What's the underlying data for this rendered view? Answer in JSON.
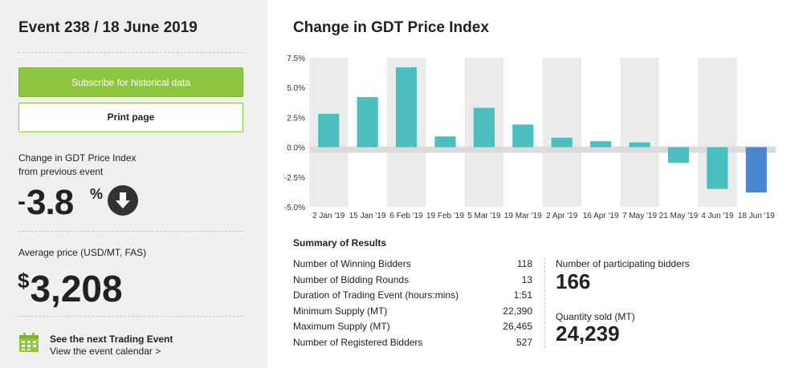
{
  "event": {
    "title": "Event 238 / 18 June 2019"
  },
  "buttons": {
    "subscribe": "Subscribe for historical data",
    "print": "Print page"
  },
  "change": {
    "label_line1": "Change in GDT Price Index",
    "label_line2": "from previous event",
    "sign": "-",
    "value": "3.8",
    "unit": "%",
    "direction_icon": "arrow-down-circle-icon"
  },
  "average": {
    "label": "Average price (USD/MT, FAS)",
    "currency": "$",
    "value": "3,208"
  },
  "next_event": {
    "title": "See the next Trading Event",
    "link": "View the event calendar >",
    "icon": "calendar-icon"
  },
  "chart_data": {
    "type": "bar",
    "title": "Change in GDT Price Index",
    "categories": [
      "2 Jan '19",
      "15 Jan '19",
      "6 Feb '19",
      "19 Feb '19",
      "5 Mar '19",
      "19 Mar '19",
      "2 Apr '19",
      "16 Apr '19",
      "7 May '19",
      "21 May '19",
      "4 Jun '19",
      "18 Jun '19"
    ],
    "values": [
      2.8,
      4.2,
      6.7,
      0.9,
      3.3,
      1.9,
      0.8,
      0.5,
      0.4,
      -1.3,
      -3.5,
      -3.8
    ],
    "ylim": [
      -5.0,
      7.5
    ],
    "yticks": [
      "7.5%",
      "5.0%",
      "2.5%",
      "0.0%",
      "-2.5%",
      "-5.0%"
    ],
    "ytick_values": [
      7.5,
      5.0,
      2.5,
      0.0,
      -2.5,
      -5.0
    ],
    "colors": {
      "bar": "#4bbfbf",
      "highlight": "#4a86d1",
      "band": "#ebebeb",
      "zero_band": "#dcdcdc"
    }
  },
  "summary": {
    "title": "Summary of Results",
    "rows": [
      {
        "label": "Number of Winning Bidders",
        "value": "118"
      },
      {
        "label": "Number of Bidding Rounds",
        "value": "13"
      },
      {
        "label": "Duration of Trading Event (hours:mins)",
        "value": "1:51"
      },
      {
        "label": "Minimum Supply (MT)",
        "value": "22,390"
      },
      {
        "label": "Maximum Supply (MT)",
        "value": "26,465"
      },
      {
        "label": "Number of Registered Bidders",
        "value": "527"
      }
    ],
    "participating_label": "Number of participating bidders",
    "participating_value": "166",
    "quantity_label": "Quantity sold (MT)",
    "quantity_value": "24,239"
  },
  "colors": {
    "accent_green": "#8dc63f",
    "panel_bg": "#f0f0f0"
  }
}
